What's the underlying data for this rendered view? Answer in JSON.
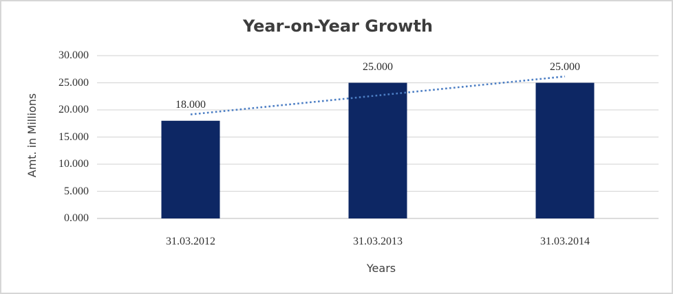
{
  "chart_data": {
    "type": "bar",
    "title": "Year-on-Year Growth",
    "xlabel": "Years",
    "ylabel": "Amt. in Millions",
    "categories": [
      "31.03.2012",
      "31.03.2013",
      "31.03.2014"
    ],
    "values": [
      18000,
      25000,
      25000
    ],
    "value_labels": [
      "18.000",
      "25.000",
      "25.000"
    ],
    "ylim": [
      0,
      30000
    ],
    "yticks": [
      0,
      5000,
      10000,
      15000,
      20000,
      25000,
      30000
    ],
    "ytick_labels": [
      "0.000",
      "5.000",
      "10.000",
      "15.000",
      "20.000",
      "25.000",
      "30.000"
    ],
    "grid": true,
    "legend": false,
    "bar_color": "#0d2764",
    "gridline_color": "#d9d9d9",
    "baseline_color": "#c6c6c6",
    "trendline": {
      "type": "linear",
      "style": "dotted",
      "color": "#4c7ec4"
    }
  }
}
